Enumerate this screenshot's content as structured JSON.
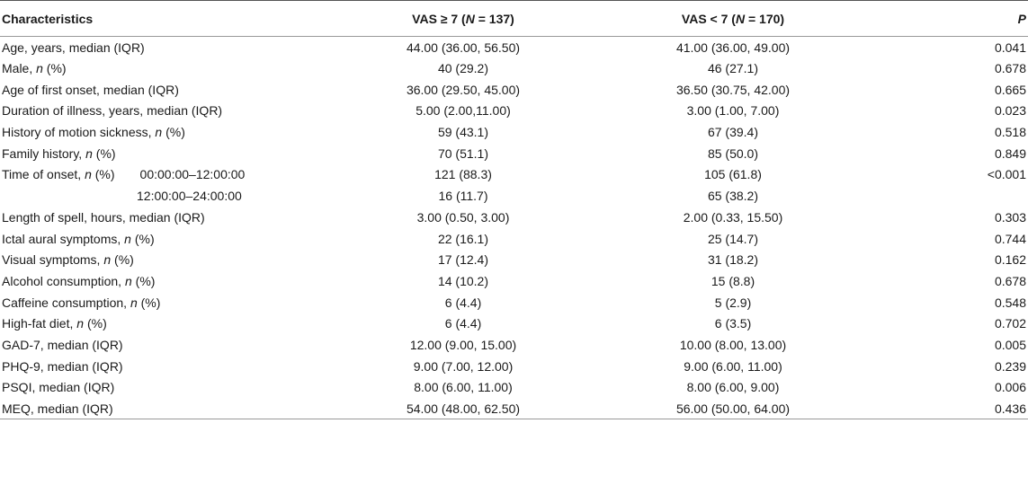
{
  "header": {
    "characteristics": "Characteristics",
    "vas_high_prefix": "VAS ≥ 7 (",
    "vas_high_n": "N",
    "vas_high_suffix": " = 137)",
    "vas_low_prefix": "VAS < 7 (",
    "vas_low_n": "N",
    "vas_low_suffix": " = 170)",
    "p": "P"
  },
  "rows": [
    {
      "label": "Age, years, median (IQR)",
      "high": "44.00 (36.00, 56.50)",
      "low": "41.00 (36.00, 49.00)",
      "p": "0.041"
    },
    {
      "label_pre": "Male, ",
      "label_it": "n",
      "label_post": " (%)",
      "high": "40 (29.2)",
      "low": "46 (27.1)",
      "p": "0.678"
    },
    {
      "label": "Age of first onset, median (IQR)",
      "high": "36.00 (29.50, 45.00)",
      "low": "36.50 (30.75, 42.00)",
      "p": "0.665"
    },
    {
      "label": "Duration of illness, years, median (IQR)",
      "high": "5.00 (2.00,11.00)",
      "low": "3.00 (1.00, 7.00)",
      "p": "0.023"
    },
    {
      "label_pre": "History of motion sickness, ",
      "label_it": "n",
      "label_post": " (%)",
      "high": "59 (43.1)",
      "low": "67 (39.4)",
      "p": "0.518"
    },
    {
      "label_pre": "Family history, ",
      "label_it": "n",
      "label_post": " (%)",
      "high": "70 (51.1)",
      "low": "85 (50.0)",
      "p": "0.849"
    },
    {
      "label_pre": "Time of onset, ",
      "label_it": "n",
      "label_post": " (%)",
      "sub": "00:00:00–12:00:00",
      "high": "121 (88.3)",
      "low": "105 (61.8)",
      "p": "<0.001"
    },
    {
      "indent": "12:00:00–24:00:00",
      "high": "16 (11.7)",
      "low": "65 (38.2)",
      "p": ""
    },
    {
      "label": "Length of spell, hours, median (IQR)",
      "high": "3.00 (0.50, 3.00)",
      "low": "2.00 (0.33, 15.50)",
      "p": "0.303"
    },
    {
      "label_pre": "Ictal aural symptoms, ",
      "label_it": "n",
      "label_post": " (%)",
      "high": "22 (16.1)",
      "low": "25 (14.7)",
      "p": "0.744"
    },
    {
      "label_pre": "Visual symptoms, ",
      "label_it": "n",
      "label_post": " (%)",
      "high": "17 (12.4)",
      "low": "31 (18.2)",
      "p": "0.162"
    },
    {
      "label_pre": "Alcohol consumption, ",
      "label_it": "n",
      "label_post": " (%)",
      "high": "14 (10.2)",
      "low": "15 (8.8)",
      "p": "0.678"
    },
    {
      "label_pre": "Caffeine consumption, ",
      "label_it": "n",
      "label_post": " (%)",
      "high": "6 (4.4)",
      "low": "5 (2.9)",
      "p": "0.548"
    },
    {
      "label_pre": "High-fat diet, ",
      "label_it": "n",
      "label_post": " (%)",
      "high": "6 (4.4)",
      "low": "6 (3.5)",
      "p": "0.702"
    },
    {
      "label": "GAD-7, median (IQR)",
      "high": "12.00 (9.00, 15.00)",
      "low": "10.00 (8.00, 13.00)",
      "p": "0.005"
    },
    {
      "label": "PHQ-9, median (IQR)",
      "high": "9.00 (7.00, 12.00)",
      "low": "9.00 (6.00, 11.00)",
      "p": "0.239"
    },
    {
      "label": "PSQI, median (IQR)",
      "high": "8.00 (6.00, 11.00)",
      "low": "8.00 (6.00, 9.00)",
      "p": "0.006"
    },
    {
      "label": "MEQ, median (IQR)",
      "high": "54.00 (48.00, 62.50)",
      "low": "56.00 (50.00, 64.00)",
      "p": "0.436"
    }
  ]
}
